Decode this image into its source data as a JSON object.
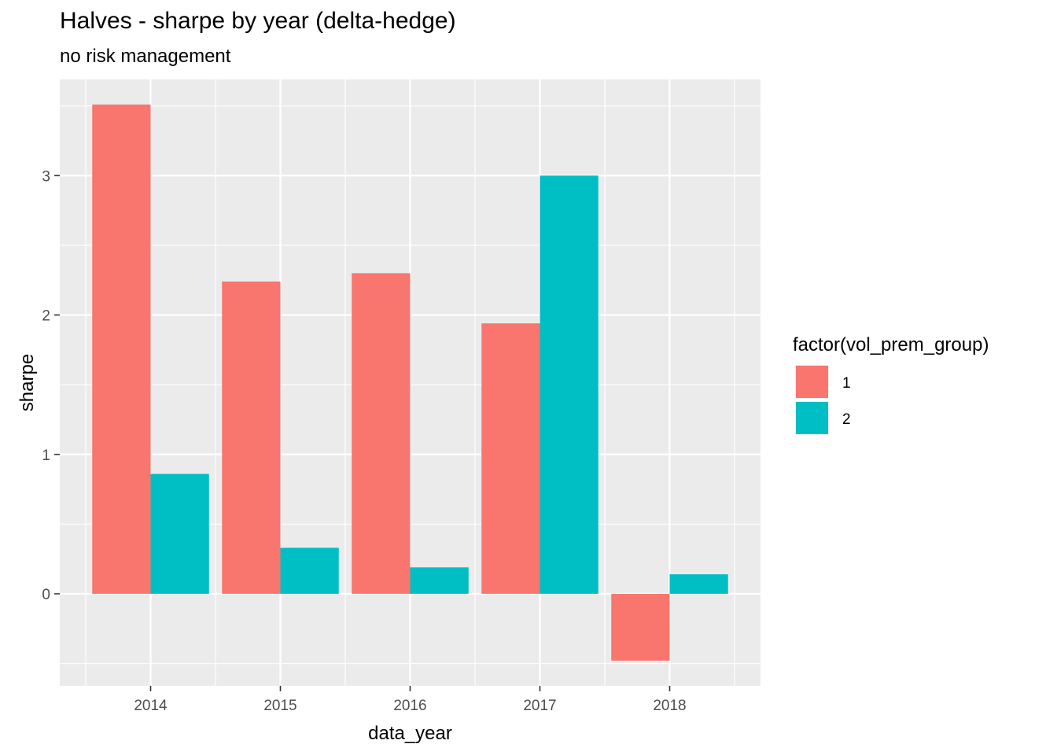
{
  "chart_data": {
    "type": "bar",
    "title": "Halves - sharpe by year (delta-hedge)",
    "subtitle": "no risk management",
    "xlabel": "data_year",
    "ylabel": "sharpe",
    "categories": [
      "2014",
      "2015",
      "2016",
      "2017",
      "2018"
    ],
    "series": [
      {
        "name": "1",
        "color": "#F8766D",
        "values": [
          3.51,
          2.24,
          2.3,
          1.94,
          -0.48
        ]
      },
      {
        "name": "2",
        "color": "#00BFC4",
        "values": [
          0.86,
          0.33,
          0.19,
          3.0,
          0.14
        ]
      }
    ],
    "ylim": [
      -0.66,
      3.69
    ],
    "yticks": [
      0,
      1,
      2,
      3
    ],
    "ytick_labels": [
      "0",
      "1",
      "2",
      "3"
    ],
    "grid": true,
    "panel_background": "#EBEBEB",
    "legend": {
      "title": "factor(vol_prem_group)",
      "placement": "right"
    }
  }
}
